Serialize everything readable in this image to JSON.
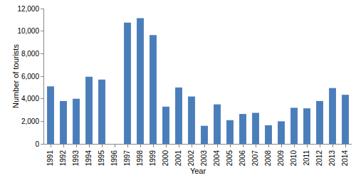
{
  "chart_data": {
    "type": "bar",
    "x_label": "Year",
    "y_label": "Number of tourists",
    "categories": [
      "1991",
      "1992",
      "1993",
      "1994",
      "1995",
      "1996",
      "1997",
      "1998",
      "1999",
      "2000",
      "2001",
      "2002",
      "2003",
      "2004",
      "2005",
      "2006",
      "2007",
      "2008",
      "2009",
      "2010",
      "2011",
      "2012",
      "2013",
      "2014"
    ],
    "values": [
      5100,
      3800,
      4000,
      5950,
      5700,
      null,
      10750,
      11150,
      9650,
      3300,
      5000,
      4200,
      1600,
      3500,
      2100,
      2650,
      2750,
      1650,
      2000,
      3200,
      3150,
      3800,
      4950,
      4350
    ],
    "color": "#4a7ebb",
    "ylim": [
      0,
      12000
    ],
    "yticks": [
      0,
      {
        "value": 2000,
        "label": "2,000"
      },
      {
        "value": 4000,
        "label": "4,000"
      },
      {
        "value": 6000,
        "label": "6,000"
      },
      {
        "value": 8000,
        "label": "8,000"
      },
      {
        "value": 10000,
        "label": "10,000"
      },
      {
        "value": 12000,
        "label": "12,000"
      }
    ],
    "grid": false
  }
}
